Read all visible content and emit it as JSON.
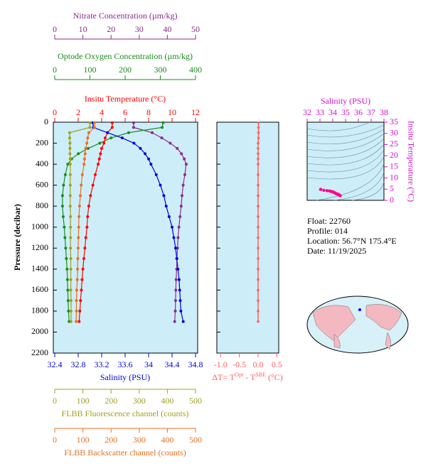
{
  "chart_data": [
    {
      "type": "profile",
      "ylabel": "Pressure (decibar)",
      "ylim": [
        0,
        2200
      ],
      "yticks": [
        0,
        200,
        400,
        600,
        800,
        1000,
        1200,
        1400,
        1600,
        1800,
        2000,
        2200
      ],
      "pressure": [
        5,
        50,
        100,
        150,
        200,
        250,
        300,
        350,
        400,
        500,
        600,
        700,
        800,
        900,
        1000,
        1100,
        1200,
        1300,
        1400,
        1500,
        1600,
        1700,
        1800,
        1900
      ],
      "profiles": [
        {
          "title": "Nitrate Concentration (µm/kg)",
          "color": "#8b2a8b",
          "xlim": [
            0,
            50
          ],
          "xticks": [
            0,
            10,
            20,
            30,
            40,
            50
          ],
          "values": [
            28,
            28,
            34.6,
            38,
            41,
            43.5,
            45,
            46,
            46.7,
            46.2,
            45.6,
            45.2,
            44.9,
            44.5,
            44.1,
            43.8,
            43.6,
            43.4,
            43.3,
            43.1,
            43,
            42.9,
            42.8,
            42.6
          ]
        },
        {
          "title": "Optode Oxygen Concentration (µm/kg)",
          "color": "#1a8c1a",
          "xlim": [
            0,
            400
          ],
          "xticks": [
            0,
            100,
            200,
            300,
            400
          ],
          "values": [
            308,
            305,
            210,
            160,
            128,
            95,
            67,
            48,
            37,
            30,
            25,
            22,
            22,
            24,
            27,
            29,
            31,
            33,
            35,
            36,
            37,
            38,
            39,
            41
          ]
        },
        {
          "title": "Insitu Temperature (°C)",
          "color": "#ff0000",
          "xlim": [
            0,
            12
          ],
          "xticks": [
            0,
            2,
            4,
            6,
            8,
            10,
            12
          ],
          "values": [
            4.9,
            4.9,
            4.5,
            4.3,
            4.2,
            4.0,
            3.9,
            3.8,
            3.7,
            3.45,
            3.25,
            3.05,
            2.9,
            2.8,
            2.75,
            2.65,
            2.57,
            2.48,
            2.4,
            2.33,
            2.27,
            2.2,
            2.14,
            2.08
          ]
        },
        {
          "title": "Salinity (PSU)",
          "color": "#0000e0",
          "xlim": [
            32.4,
            34.8
          ],
          "xticks": [
            32.4,
            32.8,
            33.2,
            33.6,
            34.0,
            34.4,
            34.8
          ],
          "values": [
            33.05,
            33.06,
            33.3,
            33.55,
            33.75,
            33.86,
            33.94,
            34.0,
            34.04,
            34.13,
            34.2,
            34.26,
            34.3,
            34.35,
            34.4,
            34.43,
            34.46,
            34.48,
            34.5,
            34.52,
            34.53,
            34.54,
            34.55,
            34.59
          ]
        },
        {
          "title": "FLBB Fluorescence channel (counts)",
          "color": "#a0a020",
          "xlim": [
            0,
            500
          ],
          "xticks": [
            0,
            100,
            200,
            300,
            400,
            500
          ],
          "values": [
            125,
            125,
            53,
            53,
            54,
            54,
            54,
            55,
            55,
            55,
            55,
            55,
            55,
            56,
            56,
            56,
            56,
            57,
            57,
            57,
            57,
            58,
            58,
            58
          ]
        },
        {
          "title": "FLBB Backscatter channel (counts)",
          "color": "#e87020",
          "xlim": [
            0,
            500
          ],
          "xticks": [
            0,
            100,
            200,
            300,
            400,
            500
          ],
          "values": [
            141,
            141,
            121,
            117,
            114,
            110,
            108,
            106,
            104,
            98,
            94,
            91,
            88,
            86,
            85,
            84,
            83,
            82,
            81,
            80,
            78,
            77,
            77,
            76
          ]
        }
      ]
    },
    {
      "type": "profile-difference",
      "xlabel": [
        "ΔT= T",
        "Opt",
        " - T",
        "SBE",
        " (°C)"
      ],
      "color": "#ff6060",
      "xlim": [
        -1.1,
        0.55
      ],
      "xticks": [
        {
          "value": -1.0,
          "label": "-1.0"
        },
        -0.5,
        {
          "value": 0.0,
          "label": "0.0"
        },
        0.5
      ],
      "values": [
        0.01,
        0.01,
        0.01,
        0.01,
        0,
        0,
        0,
        0,
        0,
        0,
        0,
        0,
        0,
        0,
        0,
        0,
        0,
        0,
        0,
        0,
        0,
        0,
        0,
        0
      ]
    },
    {
      "type": "ts-diagram",
      "xlabel": "Salinity (PSU)",
      "ylabel": "Insitu Temperature (°C)",
      "color": "#ff0090",
      "xlim": [
        32,
        38
      ],
      "xticks": [
        32,
        33,
        34,
        35,
        36,
        37,
        38
      ],
      "ylim": [
        0,
        35
      ],
      "yticks": [
        0,
        5,
        10,
        15,
        20,
        25,
        30,
        35
      ]
    }
  ],
  "info": [
    "Float:  22760",
    "Profile:  014",
    "Location:  56.7°N  175.4°E",
    "Date:  11/19/2025"
  ]
}
